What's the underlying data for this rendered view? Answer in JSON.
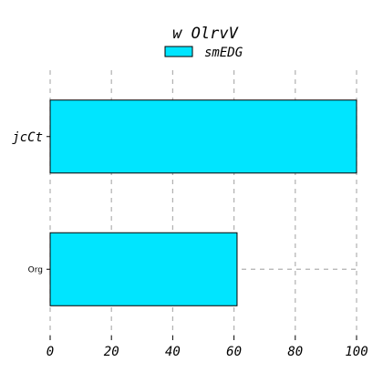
{
  "chart_data": {
    "type": "bar",
    "orientation": "horizontal",
    "title": "w OlrvV",
    "categories": [
      "jcCt",
      "Org"
    ],
    "series": [
      {
        "name": "smEDG",
        "values": [
          100,
          61
        ],
        "color": "#00e5ff"
      }
    ],
    "xlim": [
      0,
      100
    ],
    "xticks": [
      0,
      20,
      40,
      60,
      80,
      100
    ],
    "xlabel": "",
    "ylabel": "",
    "grid": true,
    "legend": "top-center"
  }
}
